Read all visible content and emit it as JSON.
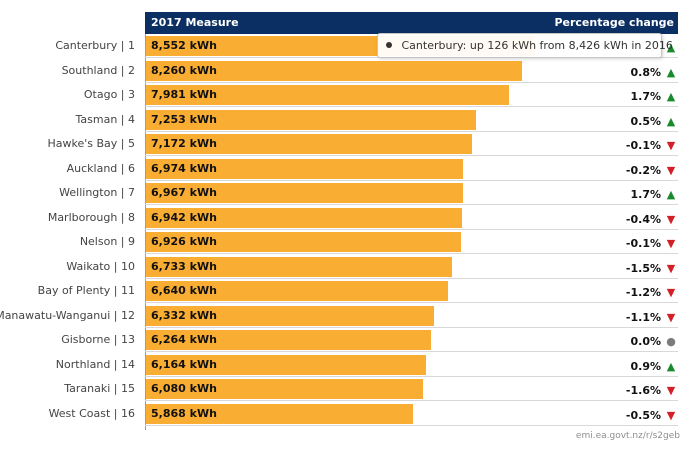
{
  "chart_data": {
    "type": "bar",
    "orientation": "horizontal",
    "header_left": "2017 Measure",
    "header_right": "Percentage change",
    "value_unit": "kWh",
    "xlim": [
      0,
      10000
    ],
    "rows": [
      {
        "label": "Canterbury | 1",
        "value": 8552,
        "value_label": "8,552 kWh",
        "change_label": "",
        "trend": "up"
      },
      {
        "label": "Southland | 2",
        "value": 8260,
        "value_label": "8,260 kWh",
        "change_label": "0.8%",
        "trend": "up"
      },
      {
        "label": "Otago | 3",
        "value": 7981,
        "value_label": "7,981 kWh",
        "change_label": "1.7%",
        "trend": "up"
      },
      {
        "label": "Tasman | 4",
        "value": 7253,
        "value_label": "7,253 kWh",
        "change_label": "0.5%",
        "trend": "up"
      },
      {
        "label": "Hawke's Bay | 5",
        "value": 7172,
        "value_label": "7,172 kWh",
        "change_label": "-0.1%",
        "trend": "down"
      },
      {
        "label": "Auckland | 6",
        "value": 6974,
        "value_label": "6,974 kWh",
        "change_label": "-0.2%",
        "trend": "down"
      },
      {
        "label": "Wellington | 7",
        "value": 6967,
        "value_label": "6,967 kWh",
        "change_label": "1.7%",
        "trend": "up"
      },
      {
        "label": "Marlborough | 8",
        "value": 6942,
        "value_label": "6,942 kWh",
        "change_label": "-0.4%",
        "trend": "down"
      },
      {
        "label": "Nelson | 9",
        "value": 6926,
        "value_label": "6,926 kWh",
        "change_label": "-0.1%",
        "trend": "down"
      },
      {
        "label": "Waikato | 10",
        "value": 6733,
        "value_label": "6,733 kWh",
        "change_label": "-1.5%",
        "trend": "down"
      },
      {
        "label": "Bay of Plenty | 11",
        "value": 6640,
        "value_label": "6,640 kWh",
        "change_label": "-1.2%",
        "trend": "down"
      },
      {
        "label": "Manawatu-Wanganui | 12",
        "value": 6332,
        "value_label": "6,332 kWh",
        "change_label": "-1.1%",
        "trend": "down"
      },
      {
        "label": "Gisborne | 13",
        "value": 6264,
        "value_label": "6,264 kWh",
        "change_label": "0.0%",
        "trend": "flat"
      },
      {
        "label": "Northland | 14",
        "value": 6164,
        "value_label": "6,164 kWh",
        "change_label": "0.9%",
        "trend": "up"
      },
      {
        "label": "Taranaki | 15",
        "value": 6080,
        "value_label": "6,080 kWh",
        "change_label": "-1.6%",
        "trend": "down"
      },
      {
        "label": "West Coast | 16",
        "value": 5868,
        "value_label": "5,868 kWh",
        "change_label": "-0.5%",
        "trend": "down"
      }
    ],
    "tooltip": "Canterbury: up 126 kWh from 8,426 kWh in 2016"
  },
  "source": "emi.ea.govt.nz/r/s2geb",
  "colors": {
    "header_bg": "#0b2f63",
    "bar": "#f9ad32",
    "up": "#1b8a2c",
    "down": "#d31f26",
    "flat": "#7b7b7b"
  },
  "icons": {
    "up": "triangle-up-icon",
    "down": "triangle-down-icon",
    "flat": "circle-icon"
  }
}
